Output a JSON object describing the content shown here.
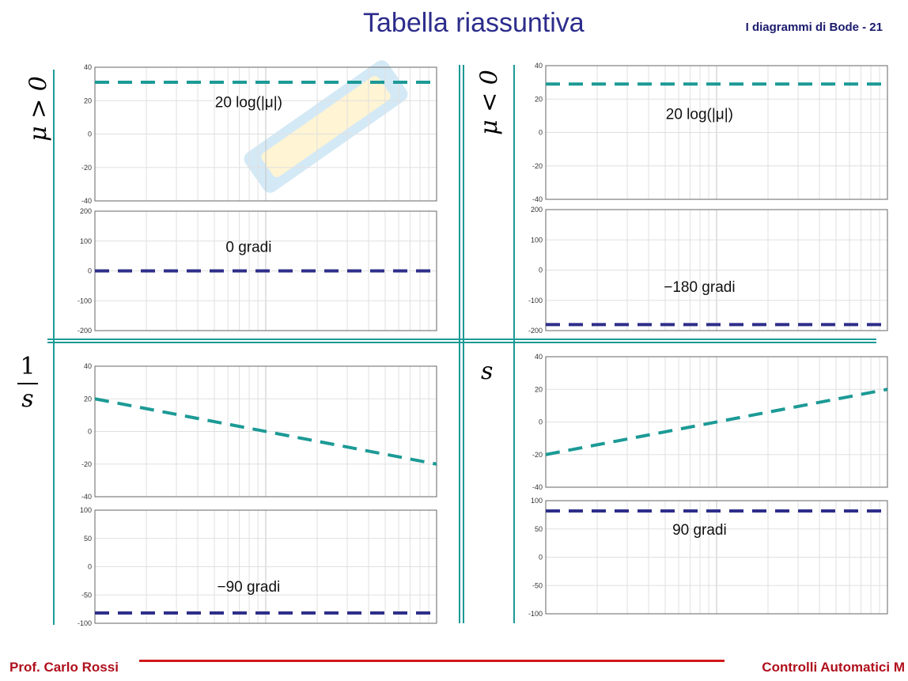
{
  "header": {
    "title": "Tabella riassuntiva",
    "slide": "I diagrammi di Bode - 21"
  },
  "footer": {
    "author": "Prof. Carlo Rossi",
    "course": "Controlli Automatici M"
  },
  "row_labels": {
    "mu_pos": "μ > 0",
    "mu_neg": "μ < 0",
    "inv_s_num": "1",
    "inv_s_den": "s",
    "s": "s"
  },
  "colors": {
    "magnitude": "#1c9a96",
    "phase": "#2e2e8a",
    "title": "#2c2c8c",
    "footer": "#b0101c"
  },
  "chart_data": [
    {
      "id": "mu_pos_mag",
      "type": "line",
      "ylim": [
        -40,
        40
      ],
      "yticks": [
        "40",
        "20",
        "0",
        "-20",
        "-40"
      ],
      "x": [
        0,
        1
      ],
      "y": [
        31,
        31
      ],
      "style": "dashed",
      "color": "#1c9a96",
      "annotation": "20 log(|μ|)"
    },
    {
      "id": "mu_pos_phase",
      "type": "line",
      "ylim": [
        -200,
        200
      ],
      "yticks": [
        "200",
        "100",
        "0",
        "-100",
        "-200"
      ],
      "x": [
        0,
        1
      ],
      "y": [
        0,
        0
      ],
      "style": "dashed",
      "color": "#2e2e8a",
      "annotation": "0 gradi"
    },
    {
      "id": "mu_neg_mag",
      "type": "line",
      "ylim": [
        -40,
        40
      ],
      "yticks": [
        "40",
        "20",
        "0",
        "-20",
        "-40"
      ],
      "x": [
        0,
        1
      ],
      "y": [
        29,
        29
      ],
      "style": "dashed",
      "color": "#1c9a96",
      "annotation": "20 log(|μ|)"
    },
    {
      "id": "mu_neg_phase",
      "type": "line",
      "ylim": [
        -200,
        200
      ],
      "yticks": [
        "200",
        "100",
        "0",
        "-100",
        "-200"
      ],
      "x": [
        0,
        1
      ],
      "y": [
        -180,
        -180
      ],
      "style": "dashed",
      "color": "#2e2e8a",
      "annotation": "−180 gradi"
    },
    {
      "id": "inv_s_mag",
      "type": "line",
      "ylim": [
        -40,
        40
      ],
      "yticks": [
        "40",
        "20",
        "0",
        "-20",
        "-40"
      ],
      "x": [
        0,
        1
      ],
      "y": [
        20,
        -20
      ],
      "style": "dashed",
      "color": "#1c9a96",
      "annotation": ""
    },
    {
      "id": "inv_s_phase",
      "type": "line",
      "ylim": [
        -110,
        110
      ],
      "yticks": [
        "100",
        "50",
        "0",
        "-50",
        "-100"
      ],
      "x": [
        0,
        1
      ],
      "y": [
        -90,
        -90
      ],
      "style": "dashed",
      "color": "#2e2e8a",
      "annotation": "−90 gradi"
    },
    {
      "id": "s_mag",
      "type": "line",
      "ylim": [
        -40,
        40
      ],
      "yticks": [
        "40",
        "20",
        "0",
        "-20",
        "-40"
      ],
      "x": [
        0,
        1
      ],
      "y": [
        -20,
        20
      ],
      "style": "dashed",
      "color": "#1c9a96",
      "annotation": ""
    },
    {
      "id": "s_phase",
      "type": "line",
      "ylim": [
        -110,
        110
      ],
      "yticks": [
        "100",
        "50",
        "0",
        "-50",
        "-100"
      ],
      "x": [
        0,
        1
      ],
      "y": [
        90,
        90
      ],
      "style": "dashed",
      "color": "#2e2e8a",
      "annotation": "90 gradi"
    }
  ]
}
